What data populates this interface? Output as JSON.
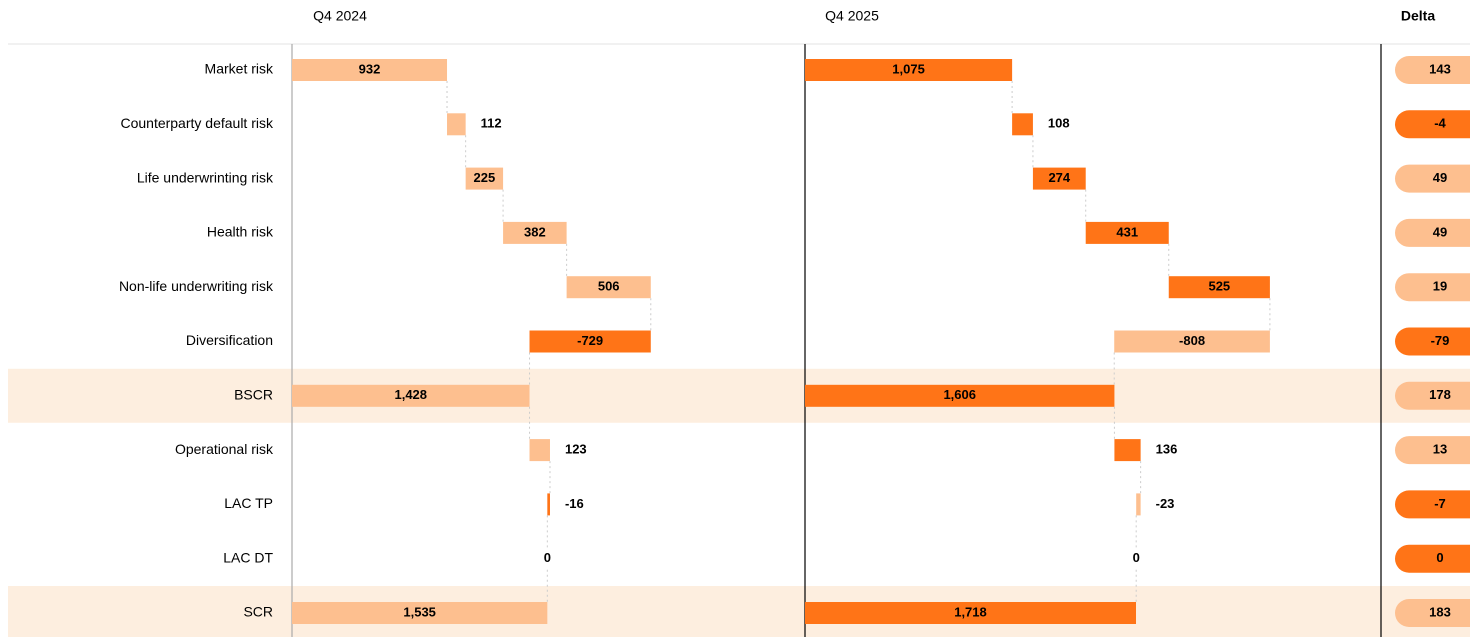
{
  "chart_data": {
    "type": "waterfall",
    "categories": [
      "Market risk",
      "Counterparty default risk",
      "Life underwrinting risk",
      "Health risk",
      "Non-life underwriting risk",
      "Diversification",
      "BSCR",
      "Operational risk",
      "LAC TP",
      "LAC DT",
      "SCR"
    ],
    "total": [
      false,
      false,
      false,
      false,
      false,
      false,
      true,
      false,
      false,
      false,
      true
    ],
    "xlim": [
      0,
      3000
    ],
    "series": [
      {
        "name": "Q4 2024",
        "color": "#fdbf8f",
        "negative_color": "#ff7417",
        "values": [
          932,
          112,
          225,
          382,
          506,
          -729,
          1428,
          123,
          -16,
          0,
          1535
        ],
        "value_labels": [
          "932",
          "112",
          "225",
          "382",
          "506",
          "-729",
          "1,428",
          "123",
          "-16",
          "0",
          "1,535"
        ]
      },
      {
        "name": "Q4 2025",
        "color": "#ff7417",
        "negative_color": "#fdbf8f",
        "values": [
          1075,
          108,
          274,
          431,
          525,
          -808,
          1606,
          136,
          -23,
          0,
          1718
        ],
        "value_labels": [
          "1,075",
          "108",
          "274",
          "431",
          "525",
          "-808",
          "1,606",
          "136",
          "-23",
          "0",
          "1,718"
        ]
      }
    ],
    "delta": {
      "name": "Delta",
      "positive_color": "#fdbf8f",
      "negative_color": "#ff7417",
      "values": [
        143,
        -4,
        49,
        49,
        19,
        -79,
        178,
        13,
        -7,
        0,
        183
      ]
    }
  }
}
